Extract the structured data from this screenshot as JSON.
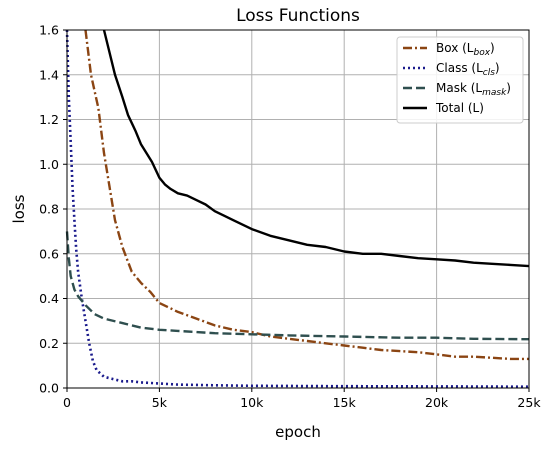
{
  "chart_data": {
    "type": "line",
    "title": "Loss Functions",
    "xlabel": "epoch",
    "ylabel": "loss",
    "xlim": [
      0,
      25000
    ],
    "ylim": [
      0,
      1.6
    ],
    "grid": true,
    "legend_position": "top-right",
    "x_ticks": [
      {
        "value": 0,
        "label": "0"
      },
      {
        "value": 5000,
        "label": "5k"
      },
      {
        "value": 10000,
        "label": "10k"
      },
      {
        "value": 15000,
        "label": "15k"
      },
      {
        "value": 20000,
        "label": "20k"
      },
      {
        "value": 25000,
        "label": "25k"
      }
    ],
    "y_ticks": [
      {
        "value": 0.0,
        "label": "0.0"
      },
      {
        "value": 0.2,
        "label": "0.2"
      },
      {
        "value": 0.4,
        "label": "0.4"
      },
      {
        "value": 0.6,
        "label": "0.6"
      },
      {
        "value": 0.8,
        "label": "0.8"
      },
      {
        "value": 1.0,
        "label": "1.0"
      },
      {
        "value": 1.2,
        "label": "1.2"
      },
      {
        "value": 1.4,
        "label": "1.4"
      },
      {
        "value": 1.6,
        "label": "1.6"
      }
    ],
    "series": [
      {
        "name": "Box (L",
        "subscript": "box",
        "name_suffix": ")",
        "color": "#8B4513",
        "style": "dashdot",
        "x": [
          1000,
          1300,
          1700,
          2000,
          2300,
          2600,
          3000,
          3500,
          4000,
          4500,
          5000,
          5500,
          6000,
          7000,
          8000,
          9000,
          10000,
          11000,
          12000,
          13000,
          14000,
          15000,
          16000,
          17000,
          18000,
          19000,
          20000,
          21000,
          22000,
          23000,
          24000,
          25000
        ],
        "y": [
          1.6,
          1.4,
          1.25,
          1.05,
          0.9,
          0.75,
          0.63,
          0.52,
          0.47,
          0.43,
          0.38,
          0.36,
          0.34,
          0.31,
          0.28,
          0.26,
          0.25,
          0.23,
          0.22,
          0.21,
          0.2,
          0.19,
          0.18,
          0.17,
          0.165,
          0.16,
          0.15,
          0.14,
          0.14,
          0.135,
          0.13,
          0.13
        ]
      },
      {
        "name": "Class (L",
        "subscript": "cls",
        "name_suffix": ")",
        "color": "#1a1a8c",
        "style": "dotted",
        "x": [
          0,
          50,
          100,
          200,
          300,
          400,
          500,
          600,
          800,
          1000,
          1200,
          1400,
          1600,
          2000,
          2500,
          3000,
          3500,
          4000,
          5000,
          6000,
          8000,
          10000,
          15000,
          20000,
          25000
        ],
        "y": [
          1.6,
          1.45,
          1.3,
          1.1,
          0.9,
          0.75,
          0.62,
          0.52,
          0.4,
          0.3,
          0.2,
          0.12,
          0.08,
          0.05,
          0.04,
          0.03,
          0.03,
          0.025,
          0.02,
          0.015,
          0.012,
          0.01,
          0.008,
          0.007,
          0.006
        ]
      },
      {
        "name": "Mask (L",
        "subscript": "mask",
        "name_suffix": ")",
        "color": "#2f4f4f",
        "style": "dashed",
        "x": [
          0,
          100,
          200,
          400,
          600,
          800,
          1000,
          1500,
          2000,
          3000,
          4000,
          5000,
          6000,
          8000,
          10000,
          12000,
          15000,
          18000,
          20000,
          22000,
          25000
        ],
        "y": [
          0.7,
          0.58,
          0.5,
          0.44,
          0.41,
          0.39,
          0.37,
          0.33,
          0.31,
          0.29,
          0.27,
          0.26,
          0.255,
          0.245,
          0.24,
          0.235,
          0.23,
          0.225,
          0.225,
          0.22,
          0.218
        ]
      },
      {
        "name": "Total (L",
        "subscript": "",
        "name_suffix": ")",
        "color": "#000000",
        "style": "solid",
        "x": [
          2000,
          2300,
          2600,
          3000,
          3300,
          3700,
          4000,
          4300,
          4600,
          5000,
          5300,
          5600,
          6000,
          6500,
          7000,
          7500,
          8000,
          8500,
          9000,
          10000,
          11000,
          12000,
          13000,
          14000,
          15000,
          16000,
          17000,
          18000,
          19000,
          20000,
          21000,
          22000,
          23000,
          24000,
          25000
        ],
        "y": [
          1.6,
          1.5,
          1.4,
          1.3,
          1.22,
          1.15,
          1.09,
          1.05,
          1.01,
          0.94,
          0.91,
          0.89,
          0.87,
          0.86,
          0.84,
          0.82,
          0.79,
          0.77,
          0.75,
          0.71,
          0.68,
          0.66,
          0.64,
          0.63,
          0.61,
          0.6,
          0.6,
          0.59,
          0.58,
          0.575,
          0.57,
          0.56,
          0.555,
          0.55,
          0.545
        ]
      }
    ]
  }
}
